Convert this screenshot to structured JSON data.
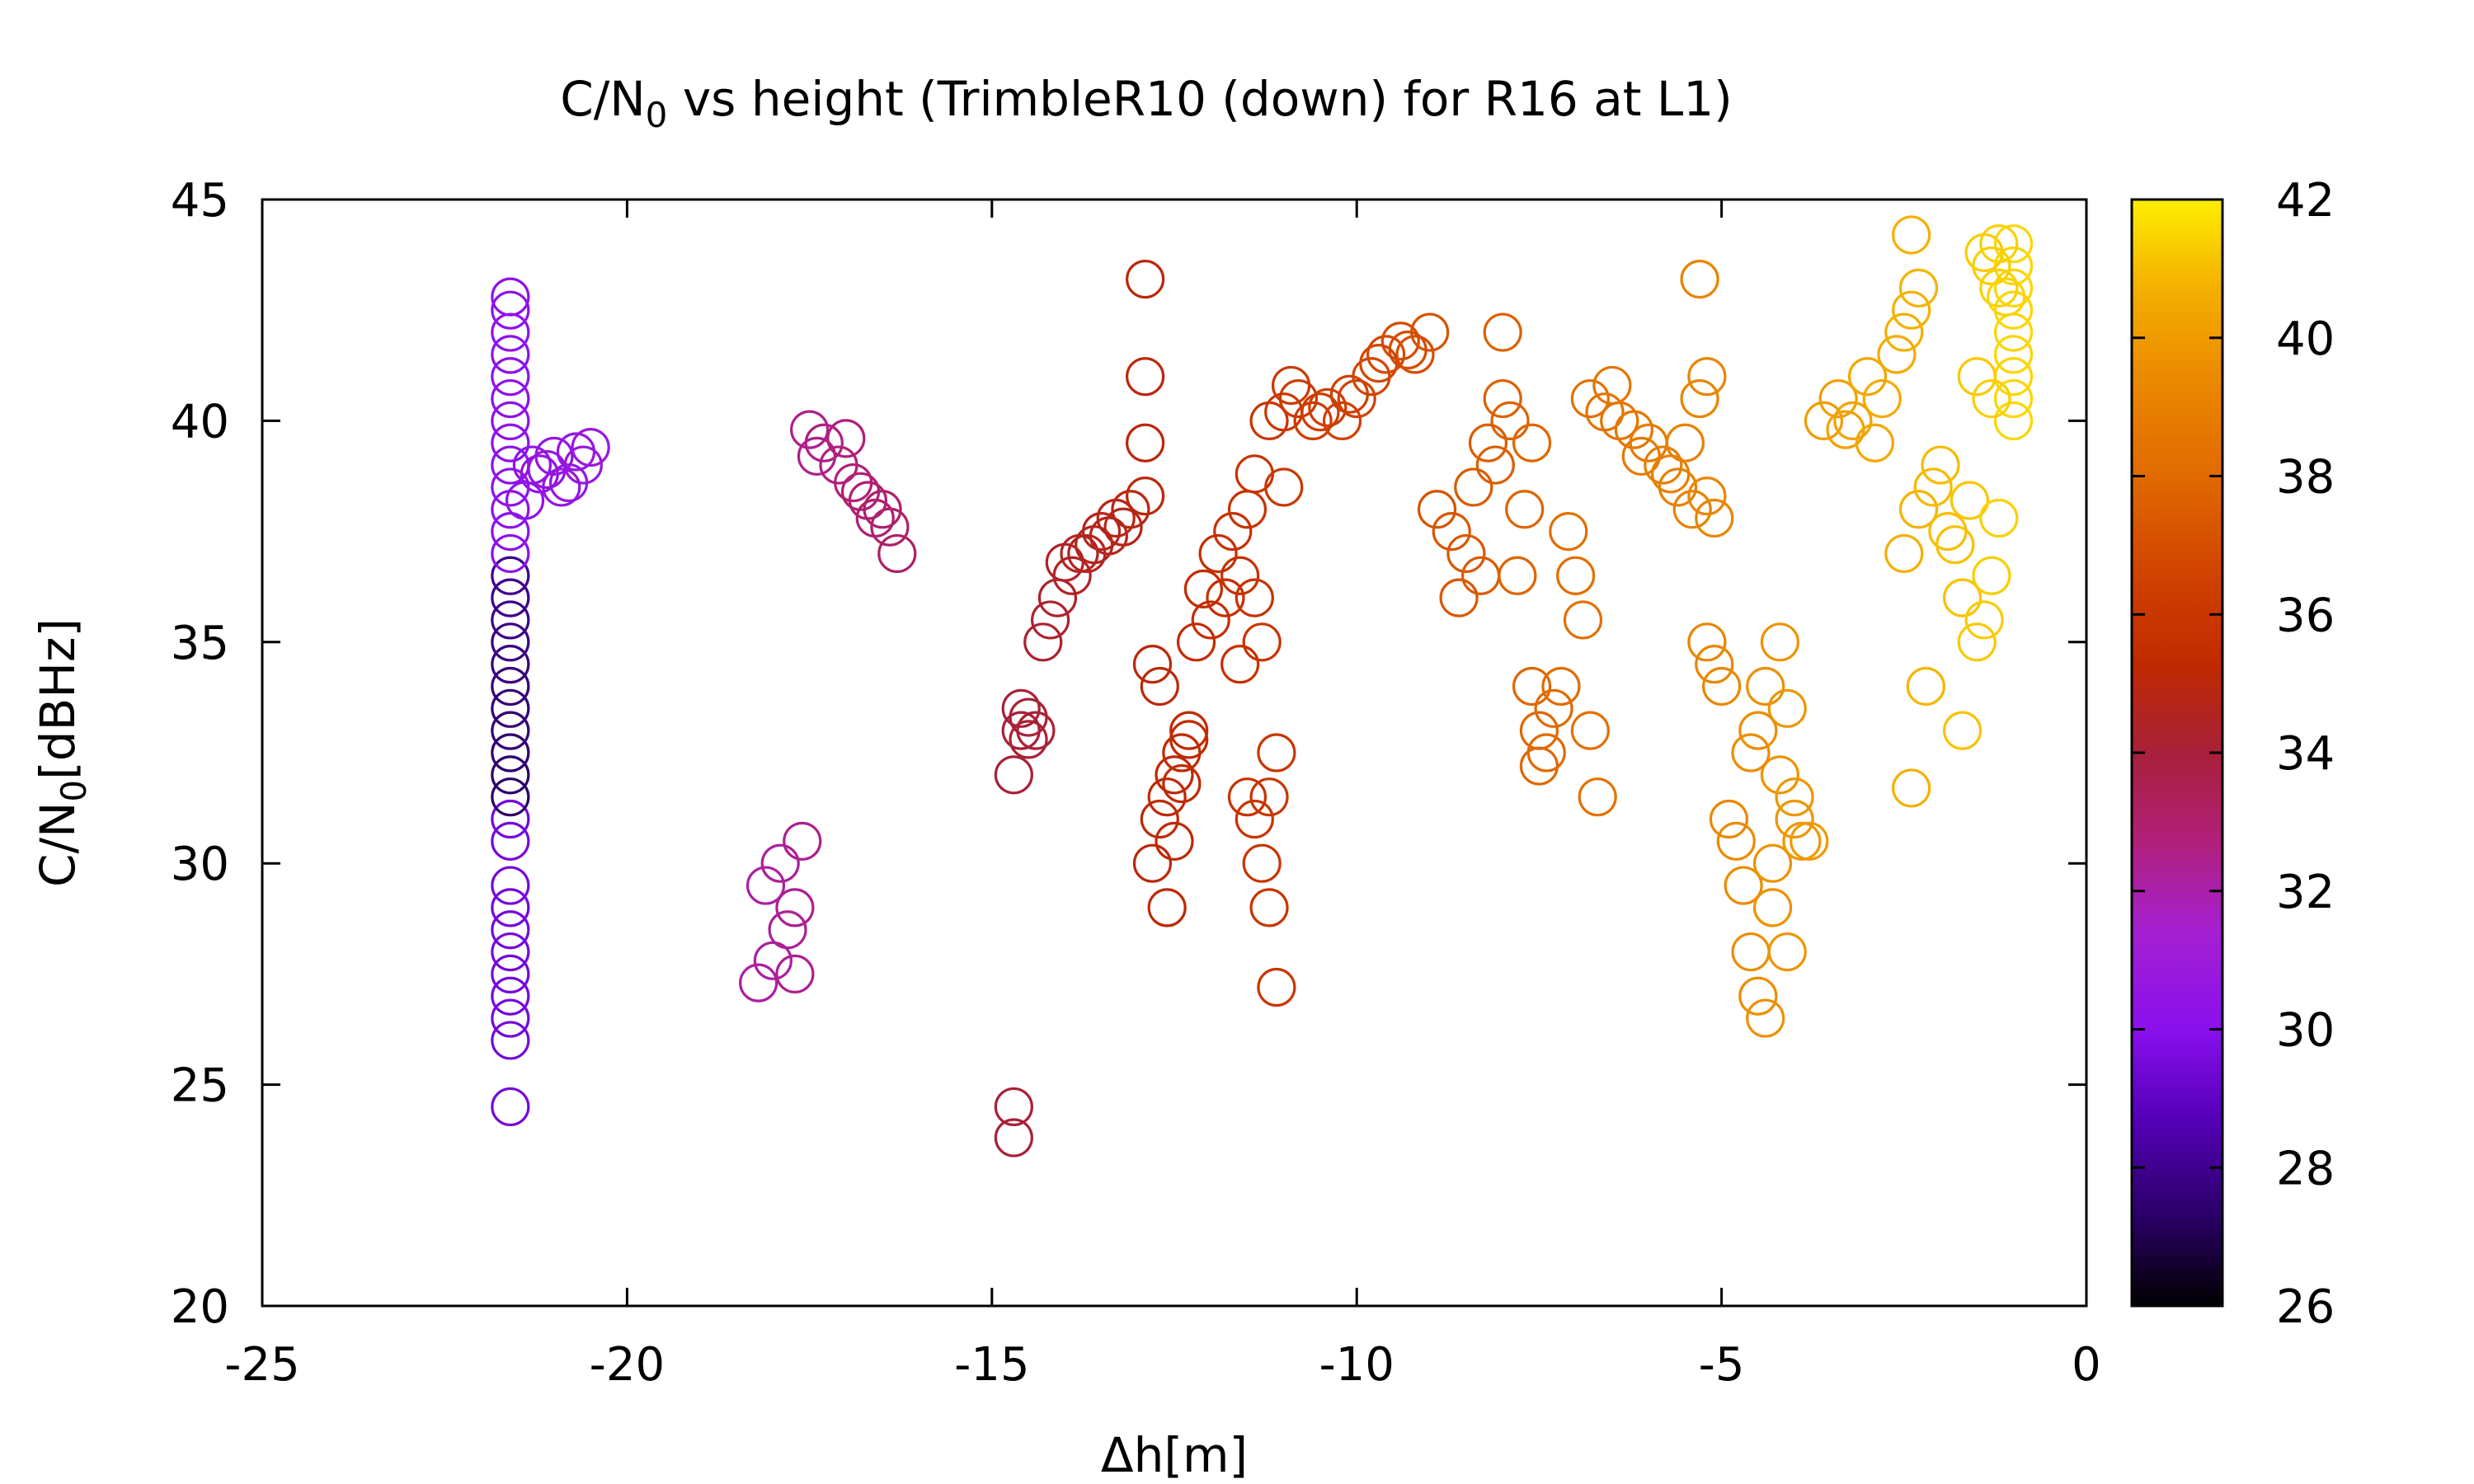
{
  "chart_data": {
    "type": "scatter",
    "title": "C/N0 vs height (TrimbleR10 (down) for R16 at L1)",
    "title_parts": {
      "pre": "C/N",
      "sub": "0",
      "post": " vs height (TrimbleR10 (down) for R16 at L1)"
    },
    "xlabel": "Δh[m]",
    "ylabel_parts": {
      "pre": "C/N",
      "sub": "0",
      "post": "[dBHz]"
    },
    "xlim": [
      -25,
      0
    ],
    "ylim": [
      20,
      45
    ],
    "x_ticks": [
      -25,
      -20,
      -15,
      -10,
      -5,
      0
    ],
    "y_ticks": [
      20,
      25,
      30,
      35,
      40,
      45
    ],
    "x_tick_labels": [
      "-25",
      "-20",
      "-15",
      "-10",
      "-5",
      "0"
    ],
    "y_tick_labels": [
      "20",
      "25",
      "30",
      "35",
      "40",
      "45"
    ],
    "colorbar": {
      "range": [
        26,
        42
      ],
      "ticks": [
        26,
        28,
        30,
        32,
        34,
        36,
        38,
        40,
        42
      ],
      "tick_labels": [
        "26",
        "28",
        "30",
        "32",
        "34",
        "36",
        "38",
        "40",
        "42"
      ],
      "palette": [
        "#000000",
        "#2a0066",
        "#5500b8",
        "#8a10ee",
        "#a51fd0",
        "#b0207a",
        "#a8203a",
        "#c02a00",
        "#d04200",
        "#e06a00",
        "#eb8a00",
        "#f4b000",
        "#ffee00"
      ]
    },
    "marker": "open-circle",
    "clusters": [
      {
        "x": -21.6,
        "y": [
          24.5,
          26,
          26.5,
          27,
          27.5,
          28,
          28.5,
          29,
          29.5,
          30.5,
          31,
          31.5,
          32,
          32.5,
          33,
          33.5,
          34,
          34.5,
          35,
          35.5,
          36,
          36.5,
          37,
          37.5,
          38,
          38.5,
          39,
          39.5,
          40,
          40.5,
          41,
          41.5,
          42,
          42.5,
          42.8
        ]
      },
      {
        "x": [
          -21.4,
          -21.2,
          -21.0,
          -20.8,
          -20.6,
          -20.5,
          -21.3,
          -20.9,
          -20.7,
          -21.1
        ],
        "y": [
          38.2,
          38.8,
          39.2,
          38.6,
          39.0,
          39.4,
          39.0,
          38.5,
          39.3,
          38.9
        ]
      },
      {
        "x": [
          -17.5,
          -17.3,
          -17.1,
          -16.9,
          -16.7,
          -16.5,
          -16.4,
          -16.3,
          -17.4,
          -17.0,
          -16.8,
          -16.6
        ],
        "y": [
          39.8,
          39.5,
          39.0,
          38.6,
          38.2,
          38.0,
          37.6,
          37.0,
          39.2,
          39.6,
          38.4,
          37.8
        ]
      },
      {
        "x": [
          -18.2,
          -18.0,
          -17.8,
          -17.7,
          -18.1,
          -17.9,
          -17.6,
          -17.7
        ],
        "y": [
          27.3,
          27.8,
          28.5,
          29.0,
          29.5,
          30.0,
          30.5,
          27.5
        ]
      },
      {
        "x": [
          -14.7,
          -14.6,
          -14.5,
          -14.4,
          -14.6,
          -14.5,
          -14.7
        ],
        "y": [
          32.0,
          33.0,
          33.3,
          33.0,
          33.5,
          32.8,
          24.5
        ]
      },
      {
        "x": [
          -14.7
        ],
        "y": [
          23.8
        ]
      },
      {
        "x": [
          -14.3,
          -14.1,
          -13.9,
          -13.7,
          -13.5,
          -13.3,
          -13.1,
          -12.9,
          -14.0,
          -13.6,
          -13.2,
          -14.2,
          -13.8,
          -13.4
        ],
        "y": [
          35.0,
          36.0,
          36.5,
          37.0,
          37.5,
          37.8,
          38.0,
          38.3,
          36.8,
          37.2,
          37.6,
          35.5,
          37.0,
          37.4
        ]
      },
      {
        "x": [
          -12.9,
          -12.9
        ],
        "y": [
          43.2,
          41.0
        ]
      },
      {
        "x": [
          -12.9
        ],
        "y": [
          39.5
        ]
      },
      {
        "x": [
          -12.8,
          -12.7,
          -12.6,
          -12.5,
          -12.4,
          -12.3,
          -12.6,
          -12.5,
          -12.8,
          -12.4,
          -12.7,
          -12.3
        ],
        "y": [
          30.0,
          31.0,
          31.5,
          32.0,
          32.5,
          33.0,
          29.0,
          30.5,
          34.5,
          31.8,
          34.0,
          32.8
        ]
      },
      {
        "x": [
          -12.2,
          -12.0,
          -11.8,
          -11.6,
          -11.4,
          -11.3,
          -12.1,
          -11.9,
          -11.7,
          -11.5,
          -11.4,
          -11.6
        ],
        "y": [
          35.0,
          35.5,
          36.0,
          36.5,
          36.0,
          35.0,
          36.2,
          37.0,
          37.5,
          38.0,
          38.8,
          34.5
        ]
      },
      {
        "x": [
          -11.5,
          -11.4,
          -11.3,
          -11.2,
          -11.1,
          -11.2,
          -11.1,
          -11.0
        ],
        "y": [
          31.5,
          31.0,
          30.0,
          31.5,
          32.5,
          29.0,
          27.2,
          38.5
        ]
      },
      {
        "x": [
          -11.2,
          -11.0,
          -10.8,
          -10.6,
          -10.4,
          -10.2,
          -10.0,
          -9.8,
          -9.6,
          -9.4,
          -9.2,
          -9.0,
          -10.9,
          -10.5,
          -10.1,
          -9.7,
          -9.3
        ],
        "y": [
          40.0,
          40.2,
          40.5,
          40.0,
          40.3,
          40.0,
          40.5,
          41.0,
          41.5,
          41.8,
          41.5,
          42.0,
          40.8,
          40.2,
          40.6,
          41.3,
          41.6
        ]
      },
      {
        "x": [
          -8.9,
          -8.7,
          -8.5,
          -8.3,
          -8.1,
          -7.9,
          -7.7,
          -8.6,
          -8.4,
          -8.2,
          -8.0,
          -7.8,
          -7.6
        ],
        "y": [
          38.0,
          37.5,
          37.0,
          36.5,
          39.0,
          40.0,
          38.0,
          36.0,
          38.5,
          39.5,
          40.5,
          36.5,
          39.5
        ]
      },
      {
        "x": [
          -8.0
        ],
        "y": [
          42.0
        ]
      },
      {
        "x": [
          -7.6,
          -7.5,
          -7.4,
          -7.3,
          -7.2,
          -7.0,
          -6.9,
          -6.8,
          -6.7,
          -7.5,
          -7.1
        ],
        "y": [
          34.0,
          33.0,
          32.5,
          33.5,
          34.0,
          36.5,
          35.5,
          33.0,
          31.5,
          32.2,
          37.5
        ]
      },
      {
        "x": [
          -6.8,
          -6.6,
          -6.4,
          -6.2,
          -6.0,
          -5.8,
          -5.6,
          -5.4,
          -6.5,
          -6.1,
          -5.7,
          -5.5
        ],
        "y": [
          40.5,
          40.2,
          40.0,
          39.8,
          39.5,
          39.0,
          38.5,
          38.0,
          40.8,
          39.2,
          38.8,
          39.5
        ]
      },
      {
        "x": [
          -5.3,
          -5.2,
          -5.3,
          -5.1,
          -5.2
        ],
        "y": [
          43.2,
          41.0,
          40.5,
          37.8,
          38.3
        ]
      },
      {
        "x": [
          -5.2,
          -5.1,
          -5.0,
          -4.9,
          -4.8,
          -4.7,
          -4.6,
          -4.5,
          -4.4,
          -4.3,
          -4.2,
          -4.1,
          -4.0,
          -3.9
        ],
        "y": [
          35.0,
          34.5,
          34.0,
          31.0,
          30.5,
          29.5,
          28.0,
          27.0,
          26.5,
          30.0,
          32.0,
          33.5,
          31.0,
          30.5
        ]
      },
      {
        "x": [
          -4.6,
          -4.4,
          -4.2,
          -4.0,
          -3.8,
          -4.5,
          -4.3,
          -4.1
        ],
        "y": [
          32.5,
          34.0,
          35.0,
          31.5,
          30.5,
          33.0,
          29.0,
          28.0
        ]
      },
      {
        "x": [
          -3.6,
          -3.4,
          -3.2,
          -3.0,
          -2.8,
          -2.6,
          -2.5,
          -2.4,
          -2.3,
          -3.3,
          -2.9
        ],
        "y": [
          40.0,
          40.5,
          40.0,
          41.0,
          40.5,
          41.5,
          42.0,
          42.5,
          43.0,
          39.8,
          39.5
        ]
      },
      {
        "x": [
          -2.4
        ],
        "y": [
          44.2
        ]
      },
      {
        "x": [
          -2.5,
          -2.3,
          -2.1,
          -1.9,
          -1.7,
          -1.5,
          -1.3,
          -2.2,
          -2.0,
          -1.8,
          -1.6,
          -1.4,
          -1.2,
          -2.4,
          -1.7
        ],
        "y": [
          37.0,
          38.0,
          38.5,
          37.5,
          36.0,
          35.0,
          36.5,
          34.0,
          39.0,
          37.2,
          38.2,
          35.5,
          37.8,
          31.7,
          33.0
        ]
      },
      {
        "x": -1.0,
        "y": [
          40.0,
          40.5,
          41.0,
          41.5,
          42.0,
          42.5,
          43.0,
          43.5,
          44.0
        ]
      },
      {
        "x": [
          -1.3,
          -1.2,
          -1.1,
          -1.4,
          -1.2
        ],
        "y": [
          43.5,
          43.0,
          42.8,
          43.8,
          44.0
        ]
      },
      {
        "x": [
          -1.5,
          -1.3
        ],
        "y": [
          41.0,
          40.5
        ]
      }
    ]
  }
}
